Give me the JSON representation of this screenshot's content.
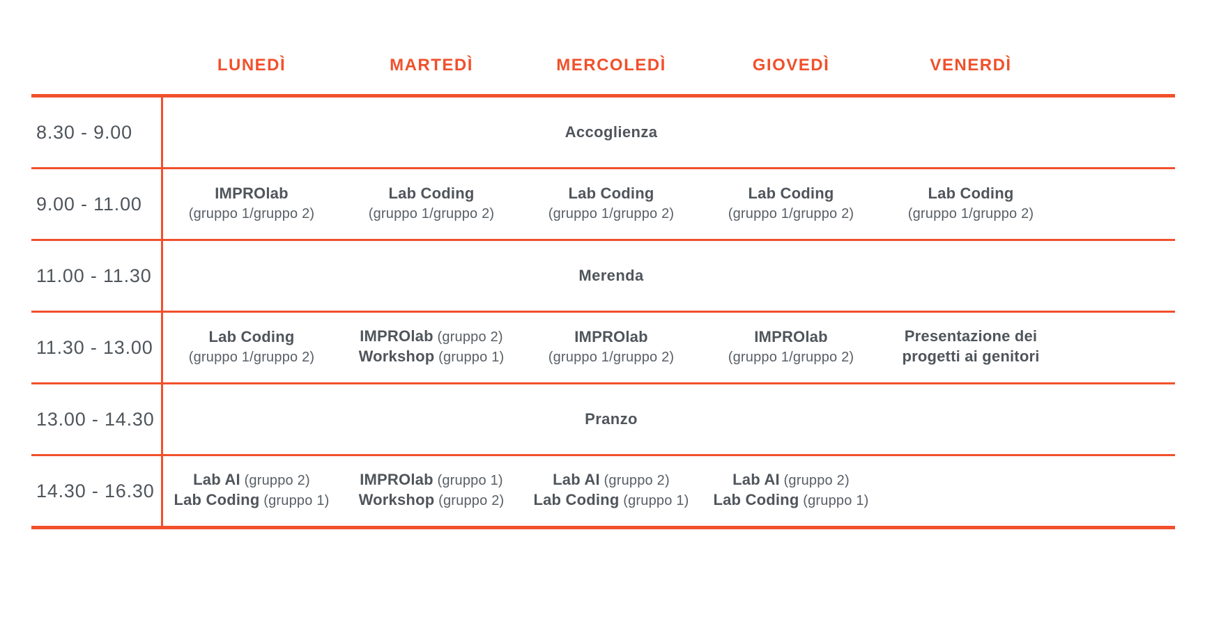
{
  "accent_color": "#F1502B",
  "text_color": "#4F555B",
  "muted_text_color": "#585E64",
  "days": [
    "LUNEDÌ",
    "MARTEDÌ",
    "MERCOLEDÌ",
    "GIOVEDÌ",
    "VENERDÌ"
  ],
  "rows": [
    {
      "time": "8.30 - 9.00",
      "type": "span",
      "label": "Accoglienza"
    },
    {
      "time": "9.00 - 11.00",
      "type": "cells",
      "cells": [
        {
          "lines": [
            [
              {
                "text": "IMPROlab",
                "bold": true
              }
            ],
            [
              {
                "text": "(gruppo 1/gruppo 2)",
                "bold": false
              }
            ]
          ]
        },
        {
          "lines": [
            [
              {
                "text": "Lab Coding",
                "bold": true
              }
            ],
            [
              {
                "text": "(gruppo 1/gruppo 2)",
                "bold": false
              }
            ]
          ]
        },
        {
          "lines": [
            [
              {
                "text": "Lab Coding",
                "bold": true
              }
            ],
            [
              {
                "text": "(gruppo 1/gruppo 2)",
                "bold": false
              }
            ]
          ]
        },
        {
          "lines": [
            [
              {
                "text": "Lab Coding",
                "bold": true
              }
            ],
            [
              {
                "text": "(gruppo 1/gruppo 2)",
                "bold": false
              }
            ]
          ]
        },
        {
          "lines": [
            [
              {
                "text": "Lab Coding",
                "bold": true
              }
            ],
            [
              {
                "text": "(gruppo 1/gruppo 2)",
                "bold": false
              }
            ]
          ]
        }
      ]
    },
    {
      "time": "11.00 - 11.30",
      "type": "span",
      "label": "Merenda"
    },
    {
      "time": "11.30 - 13.00",
      "type": "cells",
      "cells": [
        {
          "lines": [
            [
              {
                "text": "Lab Coding",
                "bold": true
              }
            ],
            [
              {
                "text": "(gruppo 1/gruppo 2)",
                "bold": false
              }
            ]
          ]
        },
        {
          "lines": [
            [
              {
                "text": "IMPROlab",
                "bold": true
              },
              {
                "text": " (gruppo 2)",
                "bold": false
              }
            ],
            [
              {
                "text": "Workshop",
                "bold": true
              },
              {
                "text": " (gruppo 1)",
                "bold": false
              }
            ]
          ]
        },
        {
          "lines": [
            [
              {
                "text": "IMPROlab",
                "bold": true
              }
            ],
            [
              {
                "text": "(gruppo 1/gruppo 2)",
                "bold": false
              }
            ]
          ]
        },
        {
          "lines": [
            [
              {
                "text": "IMPROlab",
                "bold": true
              }
            ],
            [
              {
                "text": "(gruppo 1/gruppo 2)",
                "bold": false
              }
            ]
          ]
        },
        {
          "lines": [
            [
              {
                "text": "Presentazione dei",
                "bold": true
              }
            ],
            [
              {
                "text": "progetti ai genitori",
                "bold": true
              }
            ]
          ]
        }
      ]
    },
    {
      "time": "13.00 - 14.30",
      "type": "span",
      "label": "Pranzo"
    },
    {
      "time": "14.30 - 16.30",
      "type": "cells",
      "cells": [
        {
          "lines": [
            [
              {
                "text": "Lab AI",
                "bold": true
              },
              {
                "text": " (gruppo 2)",
                "bold": false
              }
            ],
            [
              {
                "text": "Lab Coding",
                "bold": true
              },
              {
                "text": " (gruppo 1)",
                "bold": false
              }
            ]
          ]
        },
        {
          "lines": [
            [
              {
                "text": "IMPROlab",
                "bold": true
              },
              {
                "text": " (gruppo 1)",
                "bold": false
              }
            ],
            [
              {
                "text": "Workshop",
                "bold": true
              },
              {
                "text": " (gruppo 2)",
                "bold": false
              }
            ]
          ]
        },
        {
          "lines": [
            [
              {
                "text": "Lab AI",
                "bold": true
              },
              {
                "text": " (gruppo 2)",
                "bold": false
              }
            ],
            [
              {
                "text": "Lab Coding",
                "bold": true
              },
              {
                "text": " (gruppo 1)",
                "bold": false
              }
            ]
          ]
        },
        {
          "lines": [
            [
              {
                "text": "Lab AI",
                "bold": true
              },
              {
                "text": " (gruppo 2)",
                "bold": false
              }
            ],
            [
              {
                "text": "Lab Coding",
                "bold": true
              },
              {
                "text": " (gruppo 1)",
                "bold": false
              }
            ]
          ]
        },
        {
          "lines": []
        }
      ]
    }
  ]
}
